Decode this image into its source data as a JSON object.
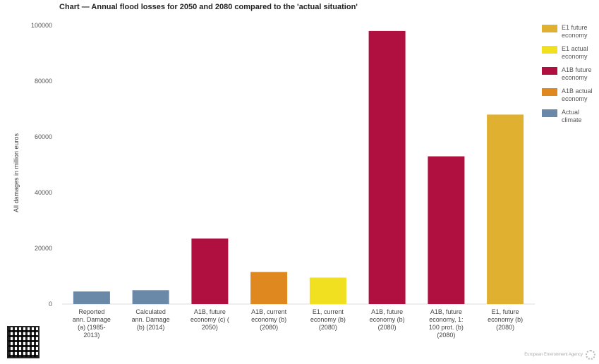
{
  "chart_data": {
    "type": "bar",
    "title": "Chart — Annual flood losses for 2050 and 2080 compared to the 'actual situation'",
    "ylabel": "All damages in million euros",
    "xlabel": "",
    "ylim": [
      0,
      100000
    ],
    "yticks": [
      0,
      20000,
      40000,
      60000,
      80000,
      100000
    ],
    "grid": false,
    "legend_position": "right",
    "categories": [
      [
        "Reported",
        "ann. Damage",
        "(a) (1985-",
        "2013)"
      ],
      [
        "Calculated",
        "ann. Damage",
        "(b) (2014)"
      ],
      [
        "A1B, future",
        "economy (c) (",
        "2050)"
      ],
      [
        "A1B, current",
        "economy (b)",
        "(2080)"
      ],
      [
        "E1, current",
        "economy (b)",
        "(2080)"
      ],
      [
        "A1B, future",
        "economy (b)",
        "(2080)"
      ],
      [
        "A1B, future",
        "economy, 1:",
        "100 prot. (b)",
        "(2080)"
      ],
      [
        "E1, future",
        "economy (b)",
        "(2080)"
      ]
    ],
    "values": [
      4500,
      5000,
      23500,
      11500,
      9500,
      98000,
      53000,
      68000
    ],
    "bar_series": [
      "Actual climate",
      "Actual climate",
      "A1B future economy",
      "A1B actual economy",
      "E1 actual economy",
      "A1B future economy",
      "A1B future economy",
      "E1 future economy"
    ],
    "series": [
      {
        "name": "E1 future economy",
        "color": "#e0b030"
      },
      {
        "name": "E1 actual economy",
        "color": "#f0e020"
      },
      {
        "name": "A1B future economy",
        "color": "#b01040"
      },
      {
        "name": "A1B actual economy",
        "color": "#e08820"
      },
      {
        "name": "Actual climate",
        "color": "#6a88a8"
      }
    ]
  },
  "legend": {
    "items": [
      {
        "label": "E1 future economy",
        "color": "#e0b030"
      },
      {
        "label": "E1 actual economy",
        "color": "#f0e020"
      },
      {
        "label": "A1B future economy",
        "color": "#b01040"
      },
      {
        "label": "A1B actual economy",
        "color": "#e08820"
      },
      {
        "label": "Actual climate",
        "color": "#6a88a8"
      }
    ]
  },
  "footer": {
    "source": "European Environment Agency",
    "qr_icon": "qr-code-icon",
    "logo_icon": "eea-logo-icon"
  }
}
